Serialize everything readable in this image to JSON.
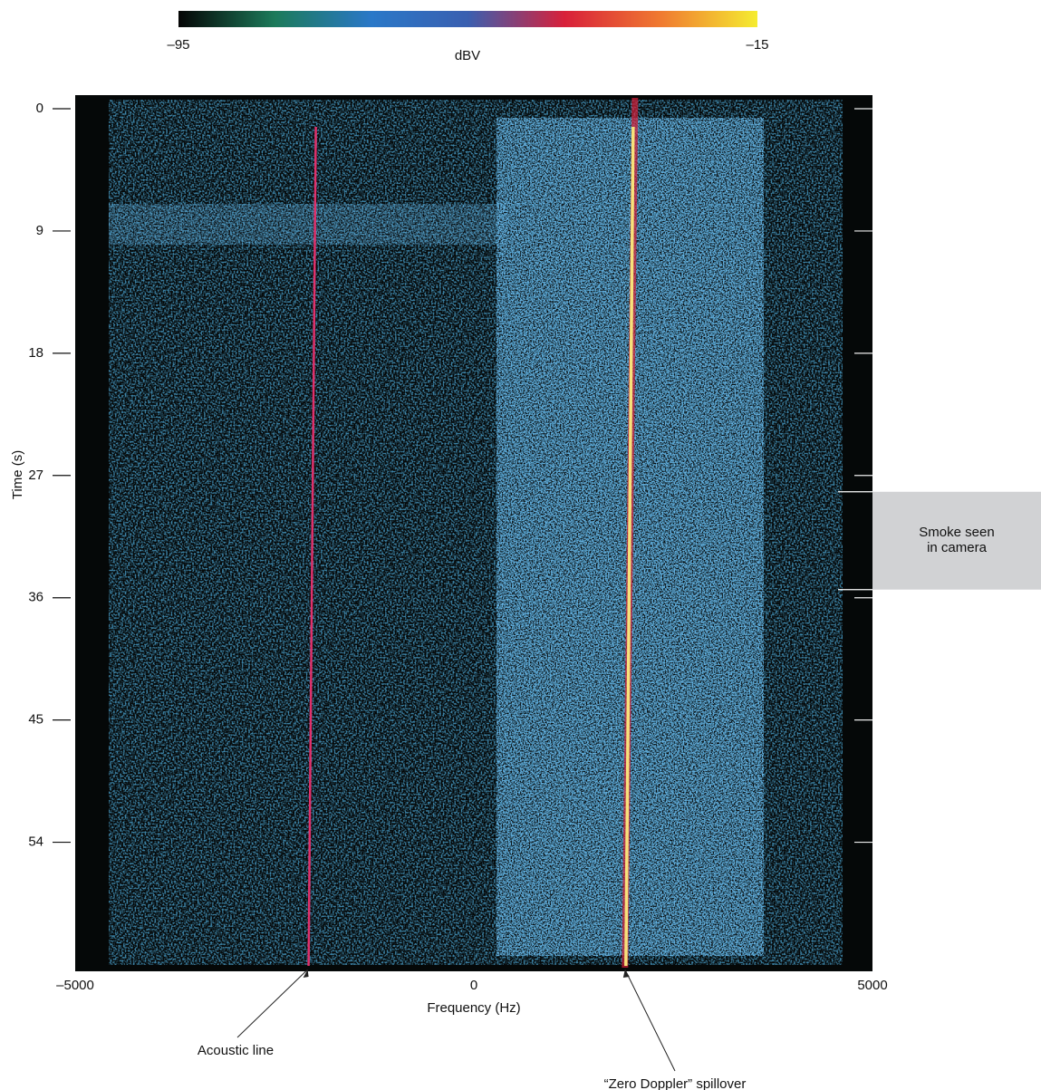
{
  "chart_data": {
    "type": "spectrogram",
    "xlabel": "Frequency (Hz)",
    "ylabel": "Time (s)",
    "xlim": [
      -5000,
      5000
    ],
    "xticks": [
      {
        "value": -5000,
        "label": "–5000"
      },
      0,
      5000
    ],
    "ylim": [
      -1,
      63.5
    ],
    "yticks": [
      0,
      9,
      18,
      27,
      36,
      45,
      54
    ],
    "y_inverted": true,
    "colorbar": {
      "label": "dBV",
      "lim": [
        -95,
        -15
      ],
      "ticks": [
        {
          "value": -95,
          "label": "–95"
        },
        {
          "value": -15,
          "label": "–15"
        }
      ],
      "colors": [
        "#050505",
        "#1c7a5a",
        "#2a78c8",
        "#3a5fb0",
        "#d8203a",
        "#f07a30",
        "#f5ec30"
      ]
    },
    "lines": [
      {
        "name": "Acoustic line",
        "x": -2050,
        "color": "#e0306a"
      },
      {
        "name": "“Zero Doppler” spillover",
        "x": 1930,
        "color": "#f7e27a"
      }
    ],
    "spans": [
      {
        "label": [
          "Smoke seen",
          "in camera"
        ],
        "range": [
          28.2,
          35.4
        ],
        "color": "#d1d2d4"
      }
    ]
  }
}
